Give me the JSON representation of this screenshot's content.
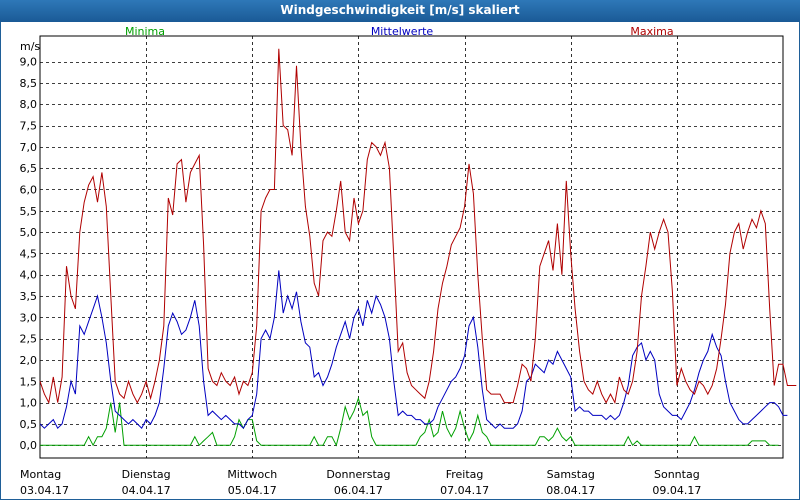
{
  "chart_data": {
    "type": "line",
    "title": "Windgeschwindigkeit [m/s] skaliert",
    "ylabel": "m/s",
    "ylim": [
      -0.3,
      9.6
    ],
    "yticks": [
      "0,0",
      "0,5",
      "1,0",
      "1,5",
      "2,0",
      "2,5",
      "3,0",
      "3,5",
      "4,0",
      "4,5",
      "5,0",
      "5,5",
      "6,0",
      "6,5",
      "7,0",
      "7,5",
      "8,0",
      "8,5",
      "9,0"
    ],
    "ytick_values": [
      0,
      0.5,
      1,
      1.5,
      2,
      2.5,
      3,
      3.5,
      4,
      4.5,
      5,
      5.5,
      6,
      6.5,
      7,
      7.5,
      8,
      8.5,
      9
    ],
    "x_count": 168,
    "days": [
      {
        "name": "Montag",
        "date": "03.04.17"
      },
      {
        "name": "Dienstag",
        "date": "04.04.17"
      },
      {
        "name": "Mittwoch",
        "date": "05.04.17"
      },
      {
        "name": "Donnerstag",
        "date": "06.04.17"
      },
      {
        "name": "Freitag",
        "date": "07.04.17"
      },
      {
        "name": "Samstag",
        "date": "08.04.17"
      },
      {
        "name": "Sonntag",
        "date": "09.04.17"
      }
    ],
    "series": [
      {
        "name": "Minima",
        "color": "#00a000",
        "values": [
          0,
          0,
          0,
          0,
          0,
          0,
          0,
          0,
          0,
          0,
          0,
          0.2,
          0,
          0.2,
          0.2,
          0.4,
          1.0,
          0.3,
          1.0,
          0,
          0,
          0,
          0,
          0,
          0,
          0,
          0,
          0,
          0,
          0,
          0,
          0,
          0,
          0,
          0,
          0.2,
          0,
          0.1,
          0.2,
          0.3,
          0,
          0,
          0,
          0,
          0.2,
          0.6,
          0.4,
          0.6,
          0.6,
          0.1,
          0,
          0,
          0,
          0,
          0,
          0,
          0,
          0,
          0,
          0,
          0,
          0,
          0.2,
          0,
          0,
          0.2,
          0.2,
          0,
          0.4,
          0.9,
          0.6,
          0.8,
          1.1,
          0.7,
          0.8,
          0.2,
          0,
          0,
          0,
          0,
          0,
          0,
          0,
          0,
          0,
          0,
          0.2,
          0.3,
          0.6,
          0.2,
          0.3,
          0.8,
          0.4,
          0.2,
          0.4,
          0.8,
          0.4,
          0.1,
          0.3,
          0.7,
          0.3,
          0.2,
          0,
          0,
          0,
          0,
          0,
          0,
          0,
          0,
          0,
          0,
          0,
          0.2,
          0.2,
          0.1,
          0.2,
          0.4,
          0.2,
          0.1,
          0.2,
          0,
          0,
          0,
          0,
          0,
          0,
          0,
          0,
          0,
          0,
          0,
          0,
          0.2,
          0,
          0.1,
          0,
          0,
          0,
          0,
          0,
          0,
          0,
          0,
          0,
          0,
          0,
          0,
          0.2,
          0,
          0,
          0,
          0,
          0,
          0,
          0,
          0,
          0,
          0,
          0,
          0,
          0.1,
          0.1,
          0.1,
          0.1,
          0,
          0,
          0
        ]
      },
      {
        "name": "Mittelwerte",
        "color": "#0000c0",
        "values": [
          0.5,
          0.4,
          0.5,
          0.6,
          0.4,
          0.5,
          0.9,
          1.5,
          1.2,
          2.8,
          2.6,
          2.9,
          3.2,
          3.5,
          3.0,
          2.4,
          1.5,
          0.8,
          0.7,
          0.6,
          0.5,
          0.6,
          0.5,
          0.4,
          0.6,
          0.5,
          0.7,
          1.0,
          1.8,
          2.8,
          3.1,
          2.9,
          2.6,
          2.7,
          3.0,
          3.4,
          2.8,
          1.5,
          0.7,
          0.8,
          0.7,
          0.6,
          0.7,
          0.6,
          0.5,
          0.5,
          0.4,
          0.6,
          0.7,
          1.2,
          2.5,
          2.7,
          2.5,
          3.0,
          4.1,
          3.1,
          3.5,
          3.2,
          3.6,
          2.9,
          2.4,
          2.3,
          1.6,
          1.7,
          1.4,
          1.6,
          1.9,
          2.3,
          2.6,
          2.9,
          2.5,
          3.0,
          3.2,
          2.8,
          3.4,
          3.1,
          3.5,
          3.3,
          3.0,
          2.5,
          1.5,
          0.7,
          0.8,
          0.7,
          0.7,
          0.6,
          0.6,
          0.5,
          0.5,
          0.6,
          0.9,
          1.1,
          1.3,
          1.5,
          1.6,
          1.8,
          2.1,
          2.8,
          3.0,
          2.3,
          1.3,
          0.6,
          0.5,
          0.4,
          0.5,
          0.4,
          0.4,
          0.4,
          0.5,
          0.8,
          1.5,
          1.6,
          1.9,
          1.8,
          1.7,
          2.0,
          1.9,
          2.2,
          2.0,
          1.8,
          1.6,
          0.8,
          0.9,
          0.8,
          0.8,
          0.7,
          0.7,
          0.7,
          0.6,
          0.7,
          0.6,
          0.7,
          1.0,
          1.4,
          2.1,
          2.3,
          2.4,
          2.0,
          2.2,
          2.0,
          1.2,
          0.9,
          0.8,
          0.7,
          0.7,
          0.6,
          0.8,
          1.0,
          1.3,
          1.7,
          2.0,
          2.2,
          2.6,
          2.3,
          2.1,
          1.5,
          1.0,
          0.8,
          0.6,
          0.5,
          0.5,
          0.6,
          0.7,
          0.8,
          0.9,
          1.0,
          1.0,
          0.9,
          0.7,
          0.7
        ]
      },
      {
        "name": "Maxima",
        "color": "#b00000",
        "values": [
          1.5,
          1.2,
          1.0,
          1.6,
          1.0,
          1.6,
          4.2,
          3.5,
          3.2,
          5.0,
          5.7,
          6.1,
          6.3,
          5.7,
          6.4,
          5.6,
          3.5,
          1.5,
          1.2,
          1.1,
          1.5,
          1.2,
          1.0,
          1.2,
          1.5,
          1.1,
          1.5,
          2.0,
          2.8,
          5.8,
          5.4,
          6.6,
          6.7,
          5.7,
          6.4,
          6.6,
          6.8,
          4.7,
          1.8,
          1.5,
          1.4,
          1.7,
          1.5,
          1.4,
          1.6,
          1.2,
          1.5,
          1.4,
          1.7,
          2.8,
          5.5,
          5.8,
          6.0,
          6.0,
          9.3,
          7.5,
          7.4,
          6.8,
          8.9,
          7.0,
          5.6,
          4.9,
          3.8,
          3.5,
          4.8,
          5.0,
          4.9,
          5.5,
          6.2,
          5.0,
          4.8,
          5.8,
          5.2,
          5.5,
          6.7,
          7.1,
          7.0,
          6.8,
          7.1,
          6.5,
          4.4,
          2.2,
          2.4,
          1.7,
          1.4,
          1.3,
          1.2,
          1.1,
          1.5,
          2.2,
          3.2,
          3.8,
          4.2,
          4.7,
          4.9,
          5.1,
          5.6,
          6.6,
          5.9,
          4.0,
          2.5,
          1.3,
          1.2,
          1.2,
          1.2,
          1.0,
          1.0,
          1.0,
          1.4,
          1.9,
          1.8,
          1.5,
          2.5,
          4.2,
          4.5,
          4.8,
          4.1,
          5.2,
          4.0,
          6.2,
          4.5,
          3.2,
          2.2,
          1.5,
          1.3,
          1.2,
          1.5,
          1.2,
          1.0,
          1.2,
          1.0,
          1.6,
          1.3,
          1.2,
          1.5,
          2.2,
          3.5,
          4.2,
          5.0,
          4.6,
          5.0,
          5.3,
          5.0,
          3.6,
          1.4,
          1.8,
          1.5,
          1.3,
          1.2,
          1.5,
          1.4,
          1.2,
          1.4,
          1.8,
          2.5,
          3.3,
          4.5,
          5.0,
          5.2,
          4.6,
          5.0,
          5.3,
          5.1,
          5.5,
          5.2,
          3.2,
          1.4,
          1.9,
          1.9,
          1.4,
          1.4,
          1.4
        ]
      }
    ]
  }
}
